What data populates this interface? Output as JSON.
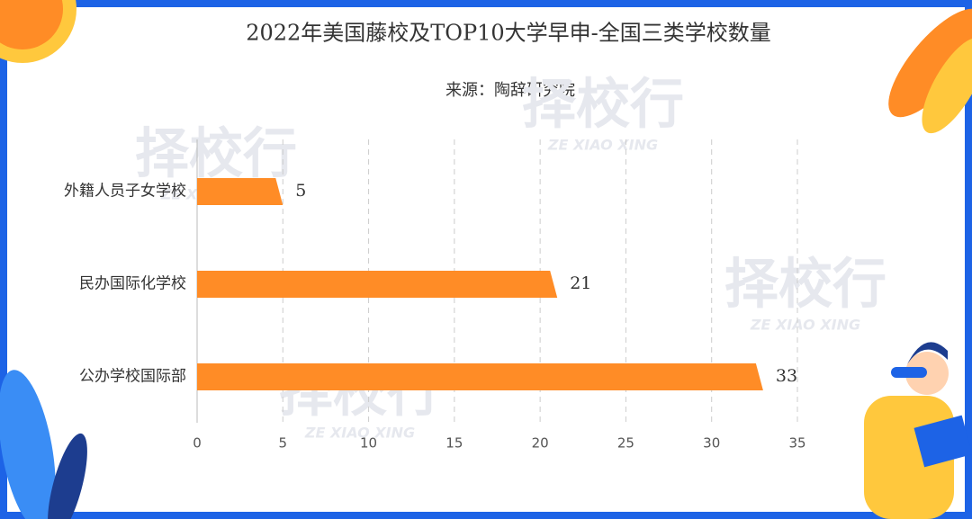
{
  "chart_data": {
    "type": "hbar",
    "title": "2022年美国藤校及TOP10大学早申-全国三类学校数量",
    "subtitle": "来源：陶辞研究院",
    "categories": [
      "外籍人员子女学校",
      "民办国际化学校",
      "公办学校国际部"
    ],
    "values": [
      5,
      21,
      33
    ],
    "color": "#ff8c26",
    "xlim": [
      0,
      35
    ],
    "xticks": [
      0,
      5,
      10,
      15,
      20,
      25,
      30,
      35
    ],
    "grid": true,
    "watermark": {
      "text": "择校行",
      "subtext": "ZE XIAO XING"
    }
  }
}
